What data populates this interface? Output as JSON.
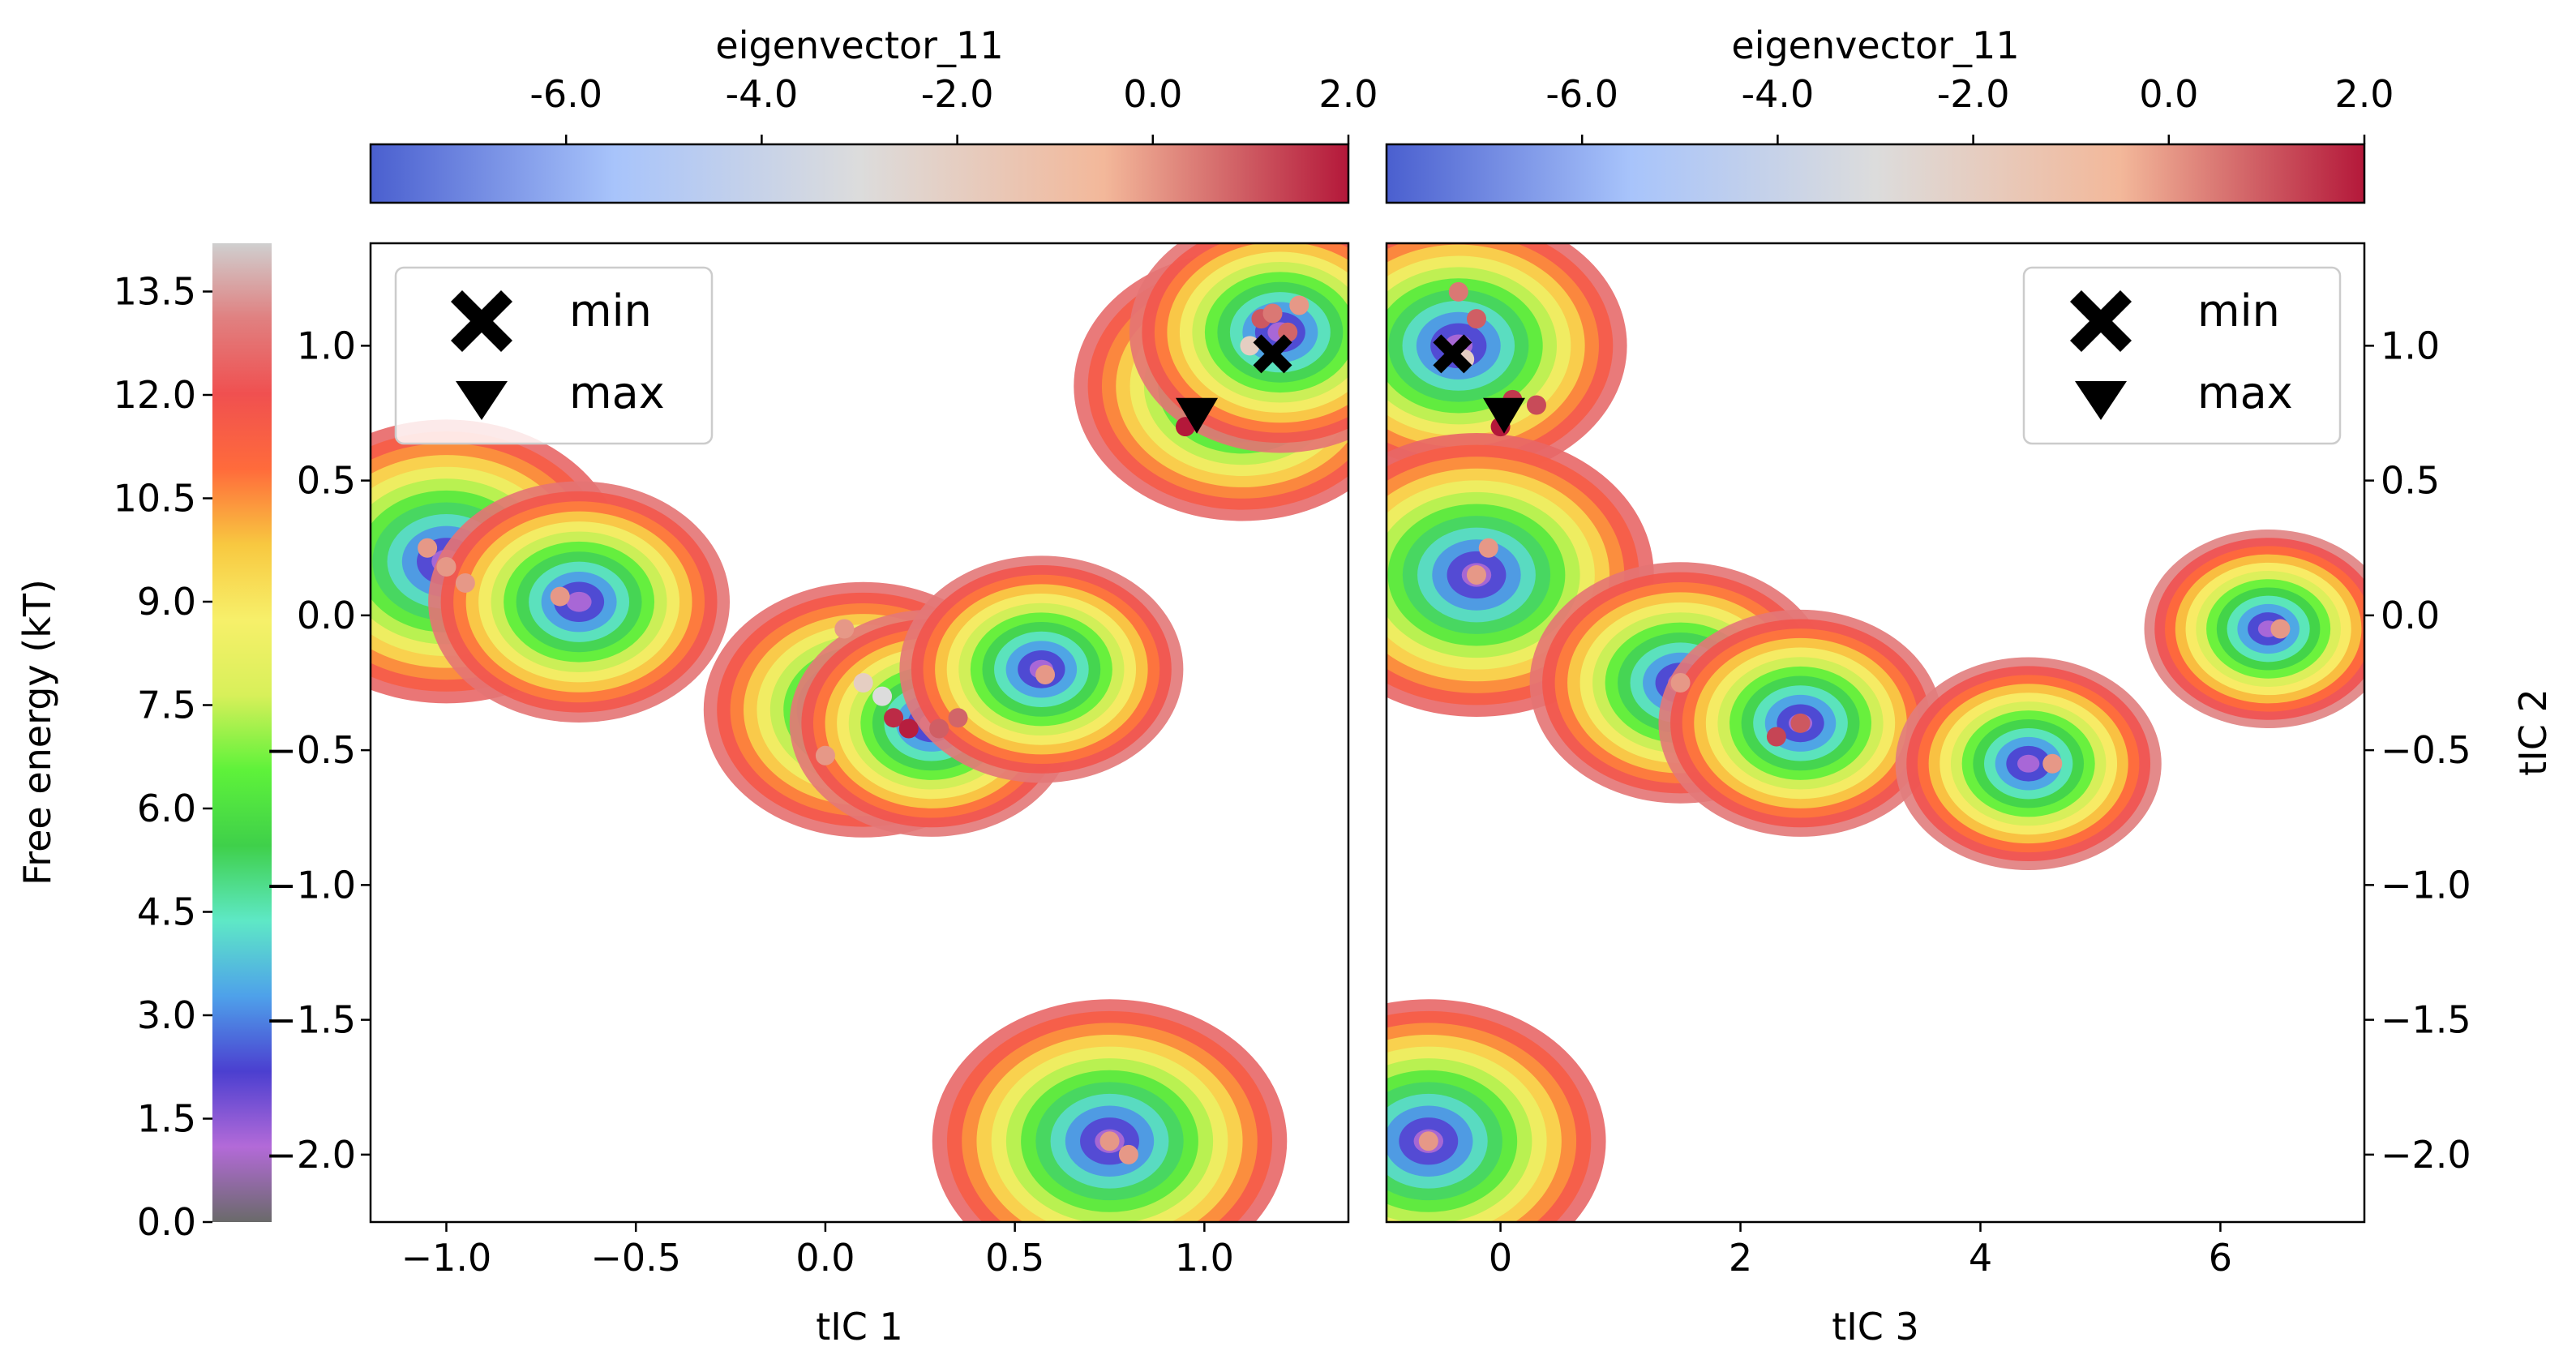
{
  "figure": {
    "energy_colorbar": {
      "label": "Free energy (kT)",
      "ticks": [
        "0.0",
        "1.5",
        "3.0",
        "4.5",
        "6.0",
        "7.5",
        "9.0",
        "10.5",
        "12.0",
        "13.5"
      ],
      "range": [
        0,
        14.2
      ],
      "stops": [
        "#6a6a6a",
        "#b36ad8",
        "#4b3fd0",
        "#4ea1ea",
        "#5ee8c6",
        "#3fd04a",
        "#5ef23a",
        "#d8f05a",
        "#f7f06a",
        "#f8c840",
        "#ff6b3b",
        "#f05050",
        "#e08080",
        "#cfcfcf"
      ]
    },
    "eig_colorbar_ticks": [
      "-6.0",
      "-4.0",
      "-2.0",
      "0.0",
      "2.0"
    ],
    "eig_colorbar_range": [
      -8.0,
      2.0
    ],
    "eig_colorbar_stops": [
      "#4a5fcf",
      "#a8c4fb",
      "#dcdcdc",
      "#f3b89a",
      "#b4183a"
    ],
    "panels": [
      {
        "id": "left",
        "colorbar_title": "eigenvector_11",
        "xlabel": "tIC 1",
        "ylabel": "",
        "ytick_side": "left",
        "xticks": [
          "−1.0",
          "−0.5",
          "0.0",
          "0.5",
          "1.0"
        ],
        "yticks": [
          "−2.0",
          "−1.5",
          "−1.0",
          "−0.5",
          "0.0",
          "0.5",
          "1.0"
        ],
        "legend": {
          "position": "top-left",
          "min_label": "min",
          "max_label": "max"
        }
      },
      {
        "id": "right",
        "colorbar_title": "eigenvector_11",
        "xlabel": "tIC 3",
        "ylabel": "tIC 2",
        "ytick_side": "right",
        "xticks": [
          "0",
          "2",
          "4",
          "6"
        ],
        "yticks": [
          "−2.0",
          "−1.5",
          "−1.0",
          "−0.5",
          "0.0",
          "0.5",
          "1.0"
        ],
        "legend": {
          "position": "top-right",
          "min_label": "min",
          "max_label": "max"
        }
      }
    ]
  },
  "chart_data": [
    {
      "type": "heatmap",
      "title": "eigenvector_11",
      "xlabel": "tIC 1",
      "ylabel": "",
      "xlim": [
        -1.2,
        1.38
      ],
      "ylim": [
        -2.25,
        1.38
      ],
      "xtick_values": [
        -1.0,
        -0.5,
        0.0,
        0.5,
        1.0
      ],
      "ytick_values": [
        -2.0,
        -1.5,
        -1.0,
        -0.5,
        0.0,
        0.5,
        1.0
      ],
      "free_energy_wells": [
        {
          "x": -1.0,
          "y": 0.2,
          "depth": 1.0
        },
        {
          "x": -0.65,
          "y": 0.05,
          "depth": 0.85
        },
        {
          "x": 0.1,
          "y": -0.35,
          "depth": 0.9
        },
        {
          "x": 0.28,
          "y": -0.4,
          "depth": 0.8
        },
        {
          "x": 0.57,
          "y": -0.2,
          "depth": 0.8
        },
        {
          "x": 1.1,
          "y": 0.85,
          "depth": 0.95
        },
        {
          "x": 1.2,
          "y": 1.05,
          "depth": 0.85
        },
        {
          "x": 0.75,
          "y": -1.95,
          "depth": 1.0
        }
      ],
      "eigenvector_points": [
        {
          "x": -1.0,
          "y": 0.18,
          "v": 0.0
        },
        {
          "x": -1.05,
          "y": 0.25,
          "v": 0.0
        },
        {
          "x": -0.95,
          "y": 0.12,
          "v": 0.0
        },
        {
          "x": -0.7,
          "y": 0.07,
          "v": 0.0
        },
        {
          "x": 0.05,
          "y": -0.05,
          "v": 0.0
        },
        {
          "x": 0.1,
          "y": -0.25,
          "v": -2.0
        },
        {
          "x": 0.15,
          "y": -0.3,
          "v": -3.0
        },
        {
          "x": 0.0,
          "y": -0.52,
          "v": 0.0
        },
        {
          "x": 0.18,
          "y": -0.38,
          "v": 1.7
        },
        {
          "x": 0.22,
          "y": -0.42,
          "v": 1.9
        },
        {
          "x": 0.3,
          "y": -0.42,
          "v": 0.9
        },
        {
          "x": 0.35,
          "y": -0.38,
          "v": 0.8
        },
        {
          "x": 0.58,
          "y": -0.22,
          "v": 0.0
        },
        {
          "x": 1.15,
          "y": 1.1,
          "v": 1.0
        },
        {
          "x": 1.18,
          "y": 1.12,
          "v": 0.5
        },
        {
          "x": 1.22,
          "y": 1.05,
          "v": 0.8
        },
        {
          "x": 1.12,
          "y": 1.0,
          "v": -2.0
        },
        {
          "x": 1.25,
          "y": 1.15,
          "v": 0.0
        },
        {
          "x": 0.95,
          "y": 0.7,
          "v": 2.0
        },
        {
          "x": 0.75,
          "y": -1.95,
          "v": 0.0
        },
        {
          "x": 0.8,
          "y": -2.0,
          "v": 0.0
        }
      ],
      "min_marker": {
        "x": 1.18,
        "y": 0.97
      },
      "max_marker": {
        "x": 0.98,
        "y": 0.74
      }
    },
    {
      "type": "heatmap",
      "title": "eigenvector_11",
      "xlabel": "tIC 3",
      "ylabel": "tIC 2",
      "xlim": [
        -0.95,
        7.2
      ],
      "ylim": [
        -2.25,
        1.38
      ],
      "xtick_values": [
        0,
        2,
        4,
        6
      ],
      "ytick_values": [
        -2.0,
        -1.5,
        -1.0,
        -0.5,
        0.0,
        0.5,
        1.0
      ],
      "free_energy_wells": [
        {
          "x": -0.35,
          "y": 1.0,
          "depth": 0.95
        },
        {
          "x": -0.2,
          "y": 0.15,
          "depth": 1.0
        },
        {
          "x": 1.5,
          "y": -0.25,
          "depth": 0.85
        },
        {
          "x": 2.5,
          "y": -0.4,
          "depth": 0.8
        },
        {
          "x": 4.4,
          "y": -0.55,
          "depth": 0.75
        },
        {
          "x": 6.4,
          "y": -0.05,
          "depth": 0.7
        },
        {
          "x": -0.6,
          "y": -1.95,
          "depth": 1.0
        }
      ],
      "eigenvector_points": [
        {
          "x": -0.35,
          "y": 1.2,
          "v": 0.5
        },
        {
          "x": -0.2,
          "y": 1.1,
          "v": 0.9
        },
        {
          "x": -0.3,
          "y": 0.95,
          "v": -2.0
        },
        {
          "x": 0.1,
          "y": 0.8,
          "v": 1.5
        },
        {
          "x": 0.3,
          "y": 0.78,
          "v": 1.2
        },
        {
          "x": 0.0,
          "y": 0.7,
          "v": 2.0
        },
        {
          "x": -0.2,
          "y": 0.15,
          "v": 0.0
        },
        {
          "x": -0.1,
          "y": 0.25,
          "v": 0.0
        },
        {
          "x": 1.5,
          "y": -0.25,
          "v": 0.0
        },
        {
          "x": 2.5,
          "y": -0.4,
          "v": 1.0
        },
        {
          "x": 2.3,
          "y": -0.45,
          "v": 1.3
        },
        {
          "x": 4.6,
          "y": -0.55,
          "v": 0.0
        },
        {
          "x": 6.5,
          "y": -0.05,
          "v": 0.0
        },
        {
          "x": -0.6,
          "y": -1.95,
          "v": 0.0
        }
      ],
      "min_marker": {
        "x": -0.4,
        "y": 0.97
      },
      "max_marker": {
        "x": 0.03,
        "y": 0.74
      }
    }
  ]
}
